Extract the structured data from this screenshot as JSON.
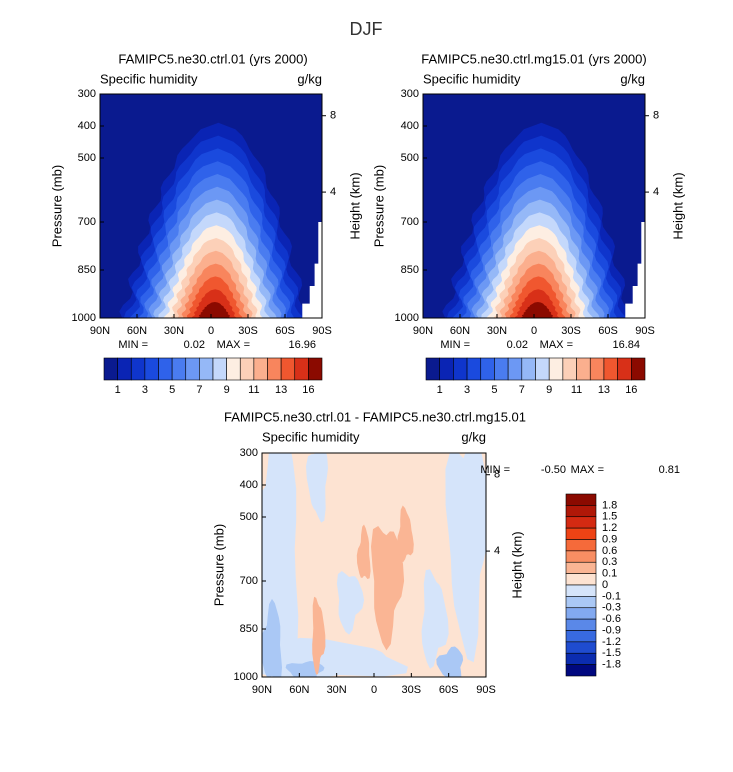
{
  "title": "DJF",
  "chart_data": [
    {
      "type": "contour",
      "title": "FAMIPC5.ne30.ctrl.01 (yrs 2000)",
      "subtitle": "Specific humidity",
      "units": "g/kg",
      "ylabel": "Pressure (mb)",
      "y2label": "Height (km)",
      "ylim": [
        1000,
        300
      ],
      "yticks": [
        300,
        400,
        500,
        700,
        850,
        1000
      ],
      "y2ticks": [
        4,
        8
      ],
      "xlim": [
        90,
        -90
      ],
      "xticks": [
        {
          "value": 90,
          "label": "90N"
        },
        {
          "value": 60,
          "label": "60N"
        },
        {
          "value": 30,
          "label": "30N"
        },
        {
          "value": 0,
          "label": "0"
        },
        {
          "value": -30,
          "label": "30S"
        },
        {
          "value": -60,
          "label": "60S"
        },
        {
          "value": -90,
          "label": "90S"
        }
      ],
      "min_label": "MIN =",
      "min": 0.02,
      "max_label": "MAX =",
      "max": 16.96,
      "colorbar": "horizontal",
      "levels": [
        1,
        2,
        3,
        4,
        5,
        6,
        7,
        8,
        9,
        10,
        11,
        12,
        13,
        14,
        16
      ],
      "colors": [
        "#0a1a8f",
        "#0a24b4",
        "#0f35cc",
        "#1a4ade",
        "#2f62ea",
        "#4a7cf0",
        "#6c98f4",
        "#95b8f7",
        "#c4d8fb",
        "#fdeee2",
        "#fcd0b8",
        "#fbaf8e",
        "#f8855d",
        "#f0572f",
        "#d83018",
        "#8b0a00"
      ]
    },
    {
      "type": "contour",
      "title": "FAMIPC5.ne30.ctrl.mg15.01 (yrs 2000)",
      "subtitle": "Specific humidity",
      "units": "g/kg",
      "ylabel": "Pressure (mb)",
      "y2label": "Height (km)",
      "ylim": [
        1000,
        300
      ],
      "yticks": [
        300,
        400,
        500,
        700,
        850,
        1000
      ],
      "y2ticks": [
        4,
        8
      ],
      "xlim": [
        90,
        -90
      ],
      "xticks": [
        {
          "value": 90,
          "label": "90N"
        },
        {
          "value": 60,
          "label": "60N"
        },
        {
          "value": 30,
          "label": "30N"
        },
        {
          "value": 0,
          "label": "0"
        },
        {
          "value": -30,
          "label": "30S"
        },
        {
          "value": -60,
          "label": "60S"
        },
        {
          "value": -90,
          "label": "90S"
        }
      ],
      "min_label": "MIN =",
      "min": 0.02,
      "max_label": "MAX =",
      "max": 16.84,
      "colorbar": "horizontal",
      "levels": [
        1,
        2,
        3,
        4,
        5,
        6,
        7,
        8,
        9,
        10,
        11,
        12,
        13,
        14,
        16
      ],
      "colors": [
        "#0a1a8f",
        "#0a24b4",
        "#0f35cc",
        "#1a4ade",
        "#2f62ea",
        "#4a7cf0",
        "#6c98f4",
        "#95b8f7",
        "#c4d8fb",
        "#fdeee2",
        "#fcd0b8",
        "#fbaf8e",
        "#f8855d",
        "#f0572f",
        "#d83018",
        "#8b0a00"
      ]
    },
    {
      "type": "difference",
      "title": "FAMIPC5.ne30.ctrl.01 - FAMIPC5.ne30.ctrl.mg15.01",
      "subtitle": "Specific humidity",
      "units": "g/kg",
      "ylabel": "Pressure (mb)",
      "y2label": "Height (km)",
      "ylim": [
        1000,
        300
      ],
      "yticks": [
        300,
        400,
        500,
        700,
        850,
        1000
      ],
      "y2ticks": [
        4,
        8
      ],
      "xlim": [
        90,
        -90
      ],
      "xticks": [
        {
          "value": 90,
          "label": "90N"
        },
        {
          "value": 60,
          "label": "60N"
        },
        {
          "value": 30,
          "label": "30N"
        },
        {
          "value": 0,
          "label": "0"
        },
        {
          "value": -30,
          "label": "30S"
        },
        {
          "value": -60,
          "label": "60S"
        },
        {
          "value": -90,
          "label": "90S"
        }
      ],
      "min_label": "MIN =",
      "min": {
        "value": -0.5,
        "label": "-0.50"
      },
      "max_label": "MAX =",
      "max": 0.81,
      "colorbar": "vertical",
      "levels": [
        1.8,
        1.5,
        1.2,
        0.9,
        0.6,
        0.3,
        0.1,
        0,
        -0.1,
        -0.3,
        -0.6,
        -0.9,
        -1.2,
        -1.5,
        -1.8
      ],
      "colors": [
        "#8b0a00",
        "#b01808",
        "#d42a12",
        "#ee4315",
        "#f56a3a",
        "#f88e63",
        "#fab594",
        "#fde3d2",
        "#d5e4fa",
        "#aac8f5",
        "#82a9f0",
        "#5a88e8",
        "#386ae0",
        "#1f4cd0",
        "#0b2cb0",
        "#00087f"
      ]
    }
  ]
}
